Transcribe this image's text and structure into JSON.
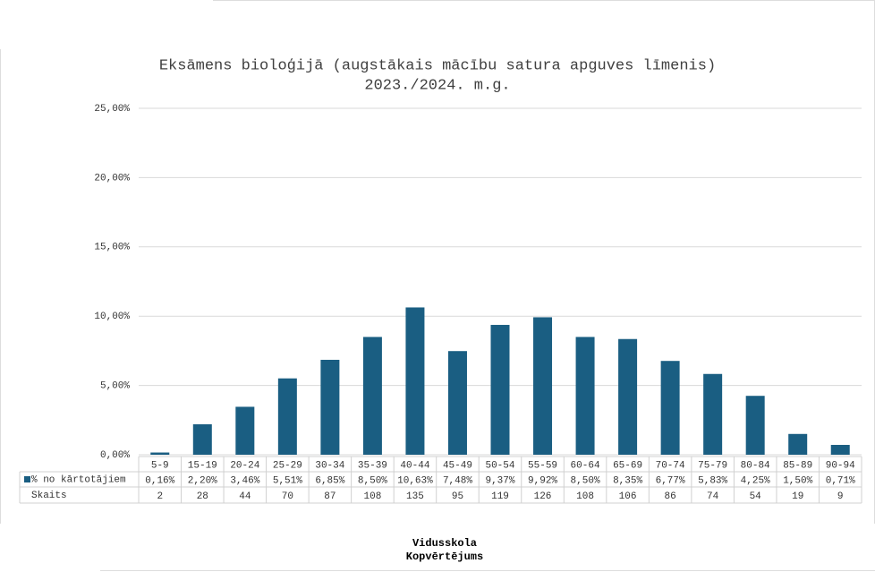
{
  "chart_data": {
    "type": "bar",
    "title": [
      "Eksāmens bioloģijā  (augstākais mācību satura apguves līmenis)",
      "2023./2024. m.g."
    ],
    "categories": [
      "5-9",
      "15-19",
      "20-24",
      "25-29",
      "30-34",
      "35-39",
      "40-44",
      "45-49",
      "50-54",
      "55-59",
      "60-64",
      "65-69",
      "70-74",
      "75-79",
      "80-84",
      "85-89",
      "90-94"
    ],
    "series": [
      {
        "name": "% no kārtotājiem",
        "color": "#1a5e82",
        "values": [
          0.16,
          2.2,
          3.46,
          5.51,
          6.85,
          8.5,
          10.63,
          7.48,
          9.37,
          9.92,
          8.5,
          8.35,
          6.77,
          5.83,
          4.25,
          1.5,
          0.71
        ],
        "value_labels": [
          "0,16%",
          "2,20%",
          "3,46%",
          "5,51%",
          "6,85%",
          "8,50%",
          "10,63%",
          "7,48%",
          "9,37%",
          "9,92%",
          "8,50%",
          "8,35%",
          "6,77%",
          "5,83%",
          "4,25%",
          "1,50%",
          "0,71%"
        ]
      }
    ],
    "counts": {
      "name": "Skaits",
      "values": [
        2,
        28,
        44,
        70,
        87,
        108,
        135,
        95,
        119,
        126,
        108,
        106,
        86,
        74,
        54,
        19,
        9
      ]
    },
    "ylim": [
      0,
      25
    ],
    "yticks": [
      {
        "value": 0,
        "label": "0,00%"
      },
      {
        "value": 5,
        "label": "5,00%"
      },
      {
        "value": 10,
        "label": "10,00%"
      },
      {
        "value": 15,
        "label": "15,00%"
      },
      {
        "value": 20,
        "label": "20,00%"
      },
      {
        "value": 25,
        "label": "25,00%"
      }
    ],
    "grid": true,
    "footer": [
      "Vidusskola",
      "Kopvērtējums"
    ]
  }
}
